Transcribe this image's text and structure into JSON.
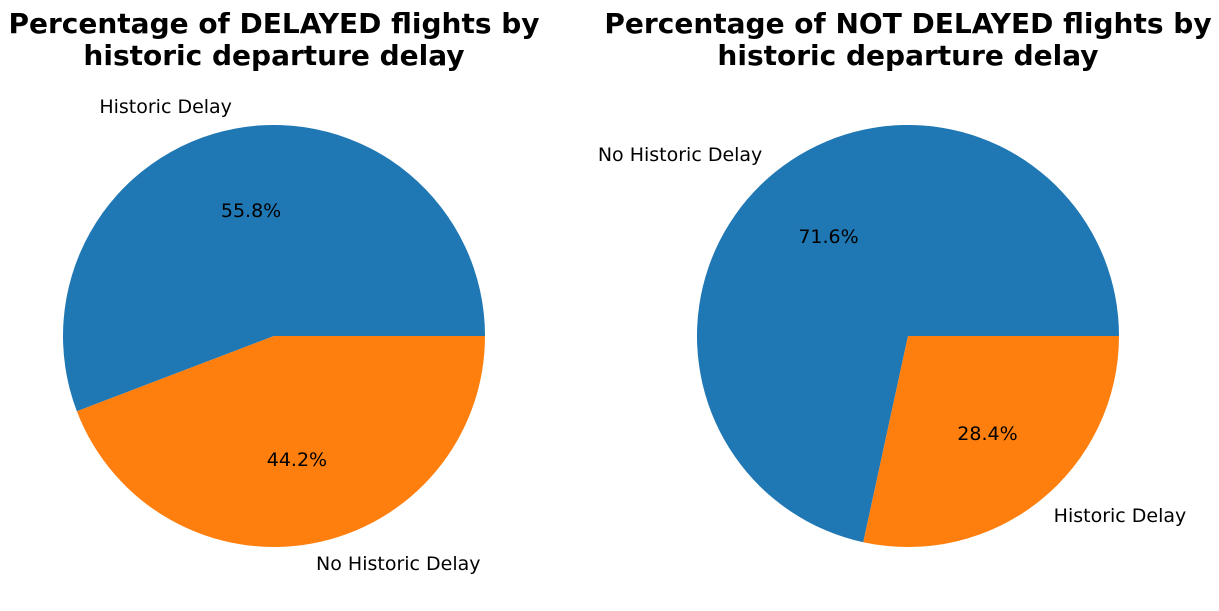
{
  "chart_data": [
    {
      "type": "pie",
      "title": [
        "Percentage of DELAYED flights by",
        "historic departure delay"
      ],
      "categories": [
        "Historic Delay",
        "No Historic Delay"
      ],
      "values": [
        55.8,
        44.2
      ],
      "percent_labels": [
        "55.8%",
        "44.2%"
      ],
      "colors": [
        "#1f77b4",
        "#ff7f0e"
      ],
      "legend": "none"
    },
    {
      "type": "pie",
      "title": [
        "Percentage of NOT DELAYED flights by",
        "historic departure delay"
      ],
      "categories": [
        "No Historic Delay",
        "Historic Delay"
      ],
      "values": [
        71.6,
        28.4
      ],
      "percent_labels": [
        "71.6%",
        "28.4%"
      ],
      "colors": [
        "#1f77b4",
        "#ff7f0e"
      ],
      "legend": "none"
    }
  ]
}
